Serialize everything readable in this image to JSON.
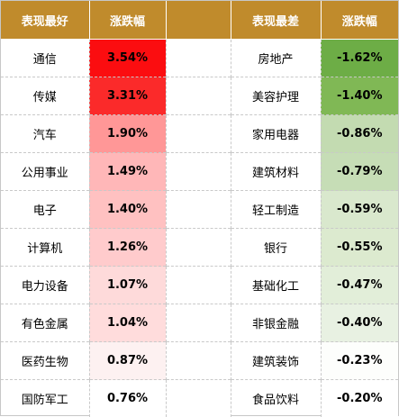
{
  "headers": {
    "best_name": "表现最好",
    "best_change": "涨跌幅",
    "worst_name": "表现最差",
    "worst_change": "涨跌幅"
  },
  "colors": {
    "header_bg": "#c08b2c",
    "best_max": "#ff0000",
    "worst_max": "#63be4b"
  },
  "rows": [
    {
      "best_name": "通信",
      "best_change": "3.54%",
      "best_bg": "#fb0d10",
      "worst_name": "房地产",
      "worst_change": "-1.62%",
      "worst_bg": "#6dad46"
    },
    {
      "best_name": "传媒",
      "best_change": "3.31%",
      "best_bg": "#fb2a2a",
      "worst_name": "美容护理",
      "worst_change": "-1.40%",
      "worst_bg": "#80b855"
    },
    {
      "best_name": "汽车",
      "best_change": "1.90%",
      "best_bg": "#ff9797",
      "worst_name": "家用电器",
      "worst_change": "-0.86%",
      "worst_bg": "#c3dbb1"
    },
    {
      "best_name": "公用事业",
      "best_change": "1.49%",
      "best_bg": "#ffb7b8",
      "worst_name": "建筑材料",
      "worst_change": "-0.79%",
      "worst_bg": "#c6ddb6"
    },
    {
      "best_name": "电子",
      "best_change": "1.40%",
      "best_bg": "#ffc1c1",
      "worst_name": "轻工制造",
      "worst_change": "-0.59%",
      "worst_bg": "#d9e8cd"
    },
    {
      "best_name": "计算机",
      "best_change": "1.26%",
      "best_bg": "#ffcbcc",
      "worst_name": "银行",
      "worst_change": "-0.55%",
      "worst_bg": "#dceacf"
    },
    {
      "best_name": "电力设备",
      "best_change": "1.07%",
      "best_bg": "#fedada",
      "worst_name": "基础化工",
      "worst_change": "-0.47%",
      "worst_bg": "#e2eed9"
    },
    {
      "best_name": "有色金属",
      "best_change": "1.04%",
      "best_bg": "#ffdcdc",
      "worst_name": "非银金融",
      "worst_change": "-0.40%",
      "worst_bg": "#e8f1e2"
    },
    {
      "best_name": "医药生物",
      "best_change": "0.87%",
      "best_bg": "#fdf1f1",
      "worst_name": "建筑装饰",
      "worst_change": "-0.23%",
      "worst_bg": "#fdfefc"
    },
    {
      "best_name": "国防军工",
      "best_change": "0.76%",
      "best_bg": "#ffffff",
      "worst_name": "食品饮料",
      "worst_change": "-0.20%",
      "worst_bg": "#ffffff"
    }
  ]
}
